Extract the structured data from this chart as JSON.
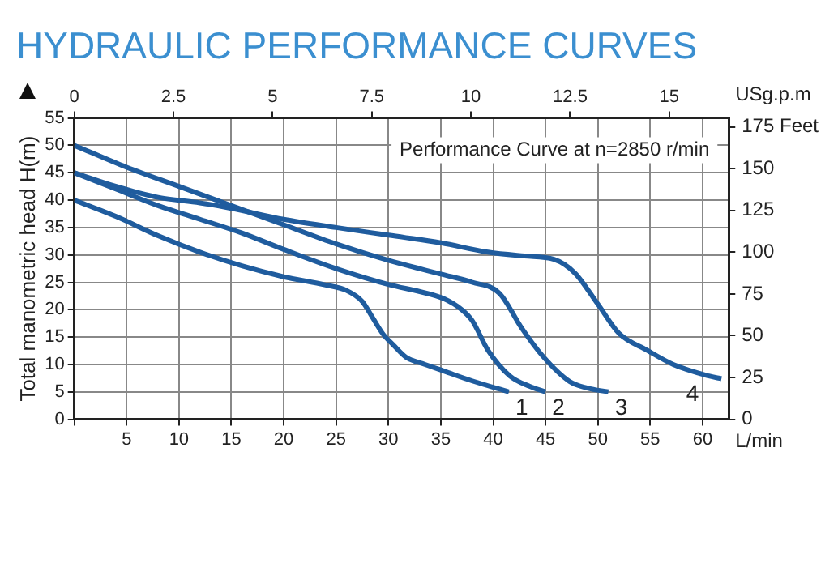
{
  "chart_data": {
    "type": "line",
    "title": "HYDRAULIC PERFORMANCE CURVES",
    "ylabel": "Total manometric head H(m)",
    "xlabel": "L/min",
    "x2label": "USg.p.m",
    "xlim": [
      0,
      62.5
    ],
    "xticks": [
      {
        "value": 0,
        "label": null
      },
      5,
      10,
      15,
      20,
      25,
      30,
      35,
      40,
      45,
      50,
      55,
      60
    ],
    "x2lim": [
      0,
      16.5
    ],
    "x2ticks": [
      0,
      2.5,
      5,
      7.5,
      10,
      12.5,
      15
    ],
    "ylim": [
      0,
      55
    ],
    "yticks": [
      0,
      5,
      10,
      15,
      20,
      25,
      30,
      35,
      40,
      45,
      50,
      55
    ],
    "y2lim": [
      0,
      180.4
    ],
    "y2ticks": [
      0,
      25,
      50,
      75,
      100,
      125,
      150,
      {
        "value": 175,
        "label": "175 Feet"
      }
    ],
    "grid": true,
    "legend": false,
    "line_style": "solid",
    "annotations": [
      "Performance Curve at n=2850 r/min",
      "1",
      "2",
      "3",
      "4"
    ],
    "series": [
      {
        "color": "#1f5c9e",
        "x": [
          0,
          4,
          8,
          12,
          16,
          20,
          24,
          26,
          27.5,
          28.5,
          29.5,
          30.5,
          31.7,
          33.5,
          35.3,
          38,
          41.5
        ],
        "values": [
          40,
          37,
          33.5,
          30.5,
          28,
          26,
          24.5,
          23.5,
          21.5,
          18.5,
          15.5,
          13.5,
          11.3,
          10,
          8.8,
          7,
          5
        ]
      },
      {
        "color": "#1f5c9e",
        "x": [
          0,
          4,
          8,
          12,
          16,
          20,
          25,
          30.2,
          33,
          35.3,
          37,
          38,
          39.5,
          41.6,
          43.5,
          45
        ],
        "values": [
          45,
          42,
          39,
          36.5,
          34,
          31,
          27.5,
          24.5,
          23.3,
          22,
          20,
          18,
          12.6,
          7.9,
          6,
          5
        ]
      },
      {
        "color": "#1f5c9e",
        "x": [
          0,
          5,
          10,
          15,
          20,
          25,
          30,
          35,
          38,
          40.6,
          42.7,
          44.7,
          47.3,
          49,
          51
        ],
        "values": [
          50,
          46,
          42.5,
          39,
          35.5,
          32,
          29,
          26.5,
          25,
          23,
          16.7,
          11.6,
          6.9,
          5.7,
          5
        ]
      },
      {
        "color": "#1f5c9e",
        "x": [
          0,
          4,
          8,
          12,
          15,
          20,
          25,
          30,
          35,
          39.5,
          43,
          45.8,
          47.8,
          50,
          52,
          54.7,
          57.2,
          60.6,
          61.8
        ],
        "values": [
          45,
          42.5,
          40.5,
          39.5,
          38.5,
          36.5,
          35,
          33.6,
          32.2,
          30.5,
          29.8,
          29.2,
          26.7,
          21,
          15.7,
          12.6,
          10,
          7.9,
          7.4
        ]
      }
    ]
  }
}
